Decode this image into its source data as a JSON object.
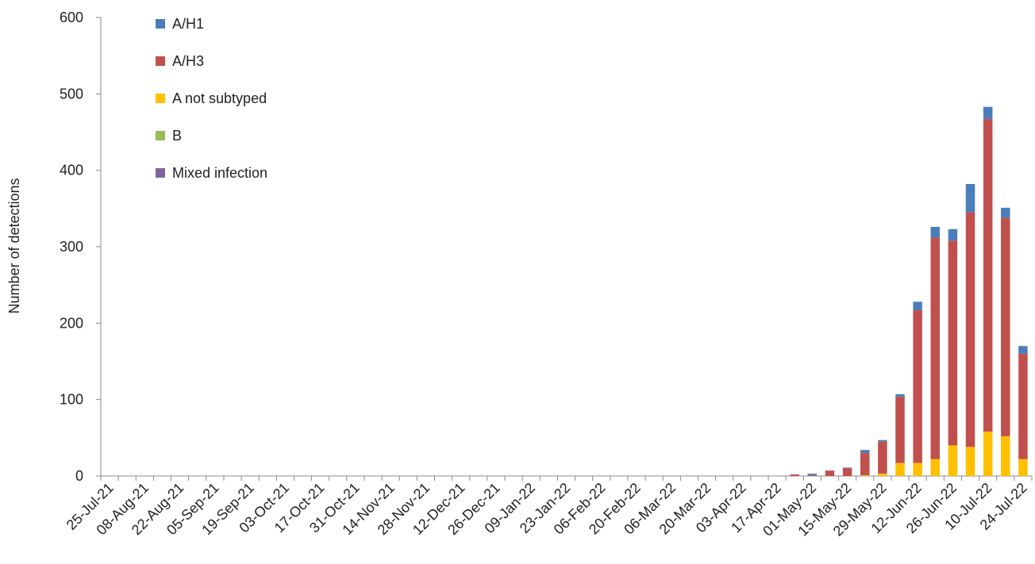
{
  "chart_data": {
    "type": "stacked-bar",
    "y_label": "Number of detections",
    "categories": [
      "25-Jul-21",
      null,
      "08-Aug-21",
      null,
      "22-Aug-21",
      null,
      "05-Sep-21",
      null,
      "19-Sep-21",
      null,
      "03-Oct-21",
      null,
      "17-Oct-21",
      null,
      "31-Oct-21",
      null,
      "14-Nov-21",
      null,
      "28-Nov-21",
      null,
      "12-Dec-21",
      null,
      "26-Dec-21",
      null,
      "09-Jan-22",
      null,
      "23-Jan-22",
      null,
      "06-Feb-22",
      null,
      "20-Feb-22",
      null,
      "06-Mar-22",
      null,
      "20-Mar-22",
      null,
      "03-Apr-22",
      null,
      "17-Apr-22",
      null,
      "01-May-22",
      null,
      "15-May-22",
      null,
      "29-May-22",
      null,
      "12-Jun-22",
      null,
      "26-Jun-22",
      null,
      "10-Jul-22",
      null,
      "24-Jul-22"
    ],
    "series": [
      {
        "name": "A/H1",
        "color": "#4a7ebb",
        "values": [
          0,
          0,
          0,
          0,
          0,
          0,
          0,
          0,
          0,
          0,
          0,
          0,
          0,
          0,
          0,
          0,
          0,
          0,
          0,
          0,
          0,
          0,
          0,
          0,
          0,
          0,
          0,
          0,
          0,
          0,
          0,
          0,
          0,
          0,
          0,
          0,
          0,
          0,
          0,
          0,
          2,
          0,
          1,
          4,
          2,
          3,
          11,
          14,
          15,
          37,
          16,
          13,
          10
        ]
      },
      {
        "name": "A/H3",
        "color": "#c0504d",
        "values": [
          0,
          0,
          0,
          0,
          0,
          0,
          0,
          0,
          0,
          0,
          0,
          0,
          0,
          0,
          0,
          0,
          0,
          0,
          0,
          0,
          0,
          0,
          0,
          0,
          0,
          0,
          0,
          0,
          0,
          0,
          0,
          0,
          0,
          0,
          0,
          0,
          0,
          0,
          0,
          2,
          1,
          7,
          10,
          29,
          42,
          87,
          200,
          290,
          268,
          307,
          409,
          286,
          138
        ]
      },
      {
        "name": "A not subtyped",
        "color": "#ffc000",
        "values": [
          0,
          0,
          0,
          0,
          0,
          0,
          0,
          0,
          0,
          0,
          0,
          0,
          0,
          0,
          0,
          0,
          0,
          0,
          0,
          0,
          0,
          0,
          0,
          0,
          0,
          0,
          0,
          0,
          0,
          0,
          0,
          0,
          0,
          0,
          0,
          0,
          0,
          0,
          0,
          0,
          0,
          0,
          0,
          1,
          3,
          17,
          17,
          22,
          40,
          38,
          58,
          52,
          22
        ]
      },
      {
        "name": "B",
        "color": "#9bbb59",
        "values": [
          0,
          0,
          0,
          0,
          0,
          0,
          0,
          0,
          0,
          0,
          0,
          0,
          0,
          0,
          0,
          0,
          0,
          0,
          0,
          0,
          0,
          0,
          0,
          0,
          0,
          0,
          0,
          0,
          0,
          0,
          0,
          0,
          0,
          0,
          0,
          0,
          0,
          0,
          0,
          0,
          0,
          0,
          0,
          0,
          0,
          0,
          0,
          0,
          0,
          0,
          0,
          0,
          0
        ]
      },
      {
        "name": "Mixed infection",
        "color": "#8064a2",
        "values": [
          0,
          0,
          0,
          0,
          0,
          0,
          0,
          0,
          0,
          0,
          0,
          0,
          0,
          0,
          0,
          0,
          0,
          0,
          0,
          0,
          0,
          0,
          0,
          0,
          0,
          0,
          0,
          0,
          0,
          0,
          0,
          0,
          0,
          0,
          0,
          0,
          0,
          0,
          0,
          0,
          0,
          0,
          0,
          0,
          0,
          0,
          0,
          0,
          0,
          0,
          0,
          0,
          0
        ]
      }
    ],
    "ylim": [
      0,
      600
    ],
    "yticks": [
      0,
      100,
      200,
      300,
      400,
      500,
      600
    ],
    "grid": false,
    "legend": "top-left"
  }
}
